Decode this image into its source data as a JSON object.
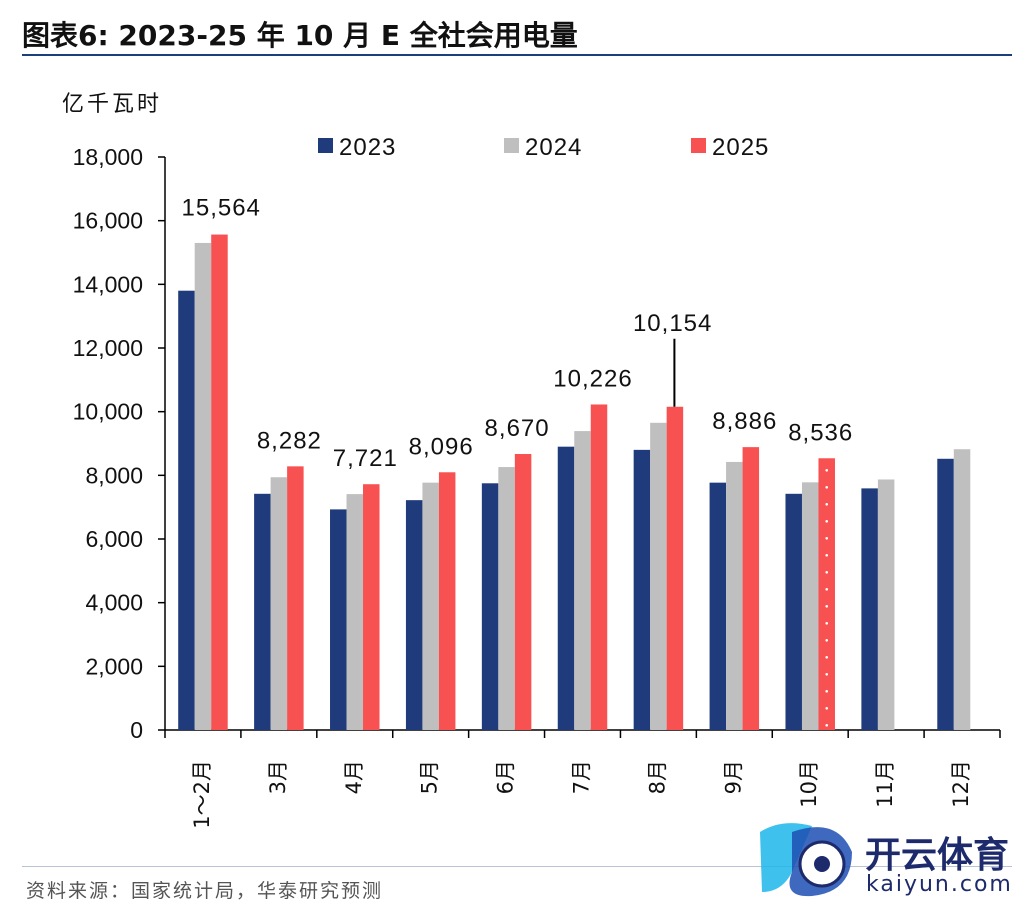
{
  "title": "图表6:   2023-25 年 10 月 E 全社会用电量",
  "source": "资料来源：国家统计局，华泰研究预测",
  "watermark": {
    "cn": "开云体育",
    "en": "kaiyun.com"
  },
  "chart_data": {
    "type": "bar",
    "unit_label": "亿千瓦时",
    "categories": [
      "1～2月",
      "3月",
      "4月",
      "5月",
      "6月",
      "7月",
      "8月",
      "9月",
      "10月",
      "11月",
      "12月"
    ],
    "series": [
      {
        "name": "2023",
        "color": "#1f3b7c",
        "values": [
          13800,
          7420,
          6930,
          7220,
          7750,
          8900,
          8800,
          7770,
          7420,
          7590,
          8520
        ]
      },
      {
        "name": "2024",
        "color": "#bfbfbf",
        "values": [
          15300,
          7940,
          7410,
          7770,
          8260,
          9390,
          9650,
          8420,
          7780,
          7870,
          8820
        ]
      },
      {
        "name": "2025",
        "color": "#f85151",
        "values": [
          15564,
          8282,
          7721,
          8096,
          8670,
          10226,
          10154,
          8886,
          8536,
          null,
          null
        ]
      }
    ],
    "data_labels": [
      "15,564",
      "8,282",
      "7,721",
      "8,096",
      "8,670",
      "10,226",
      "10,154",
      "8,886",
      "8,536"
    ],
    "estimated_category": "10月",
    "ylim": [
      0,
      18000
    ],
    "yticks": [
      "0",
      "2,000",
      "4,000",
      "6,000",
      "8,000",
      "10,000",
      "12,000",
      "14,000",
      "16,000",
      "18,000"
    ],
    "legend_position": "top-center"
  }
}
